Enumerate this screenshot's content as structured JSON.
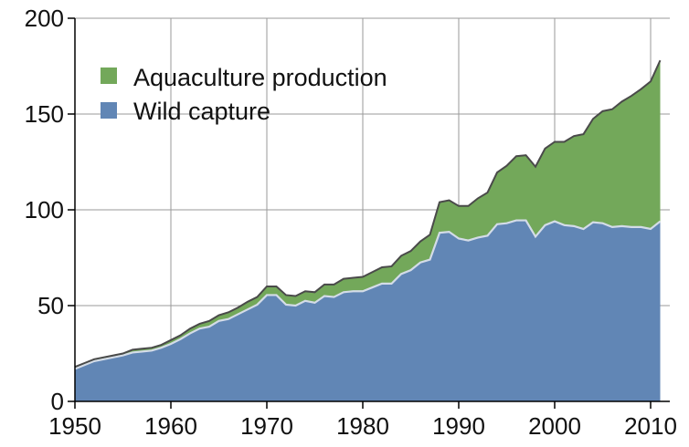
{
  "chart_data": {
    "type": "area",
    "stacked": true,
    "x": [
      1950,
      1951,
      1952,
      1953,
      1954,
      1955,
      1956,
      1957,
      1958,
      1959,
      1960,
      1961,
      1962,
      1963,
      1964,
      1965,
      1966,
      1967,
      1968,
      1969,
      1970,
      1971,
      1972,
      1973,
      1974,
      1975,
      1976,
      1977,
      1978,
      1979,
      1980,
      1981,
      1982,
      1983,
      1984,
      1985,
      1986,
      1987,
      1988,
      1989,
      1990,
      1991,
      1992,
      1993,
      1994,
      1995,
      1996,
      1997,
      1998,
      1999,
      2000,
      2001,
      2002,
      2003,
      2004,
      2005,
      2006,
      2007,
      2008,
      2009,
      2010,
      2011
    ],
    "series": [
      {
        "name": "Wild capture",
        "color": "#6186b5",
        "values": [
          17,
          19,
          21,
          22,
          23,
          24,
          25.5,
          26,
          26.5,
          28,
          30,
          32.5,
          35.5,
          38,
          39,
          42,
          43,
          45.5,
          48,
          50.5,
          55.5,
          55.5,
          50.5,
          50,
          52.5,
          51.5,
          55,
          54.5,
          57,
          57.5,
          57.5,
          59.5,
          61.5,
          61.5,
          66.5,
          68.5,
          72.5,
          74,
          88,
          88.5,
          85,
          84,
          85.5,
          86.5,
          92.5,
          93,
          94.5,
          94.5,
          86,
          92,
          94,
          92,
          91.5,
          90,
          93.5,
          93,
          91,
          91.5,
          91,
          91,
          90,
          94
        ]
      },
      {
        "name": "Aquaculture production",
        "color": "#73a85a",
        "values": [
          1,
          1,
          1,
          1,
          1,
          1,
          1.5,
          1.5,
          1.5,
          1.5,
          2,
          2,
          2.5,
          2.5,
          3,
          3,
          3.5,
          3.5,
          4,
          4,
          4.5,
          4.5,
          5,
          5,
          5,
          5.5,
          6,
          6.5,
          7,
          7,
          7.5,
          8,
          8.5,
          9,
          9.5,
          10,
          11,
          13,
          16,
          16.5,
          17,
          18,
          20.5,
          22.5,
          27,
          30,
          33.5,
          34,
          36.5,
          40,
          41.5,
          43.5,
          47,
          49.5,
          54,
          58.5,
          61.5,
          65,
          68.5,
          72,
          77,
          84
        ]
      }
    ],
    "xlim": [
      1950,
      2012
    ],
    "ylim": [
      0,
      200
    ],
    "xticks": [
      "1950",
      "1960",
      "1970",
      "1980",
      "1990",
      "2000",
      "2010"
    ],
    "yticks": [
      "0",
      "50",
      "100",
      "150",
      "200"
    ],
    "grid": true,
    "legend_position": "top-left",
    "title": "",
    "xlabel": "",
    "ylabel": ""
  }
}
